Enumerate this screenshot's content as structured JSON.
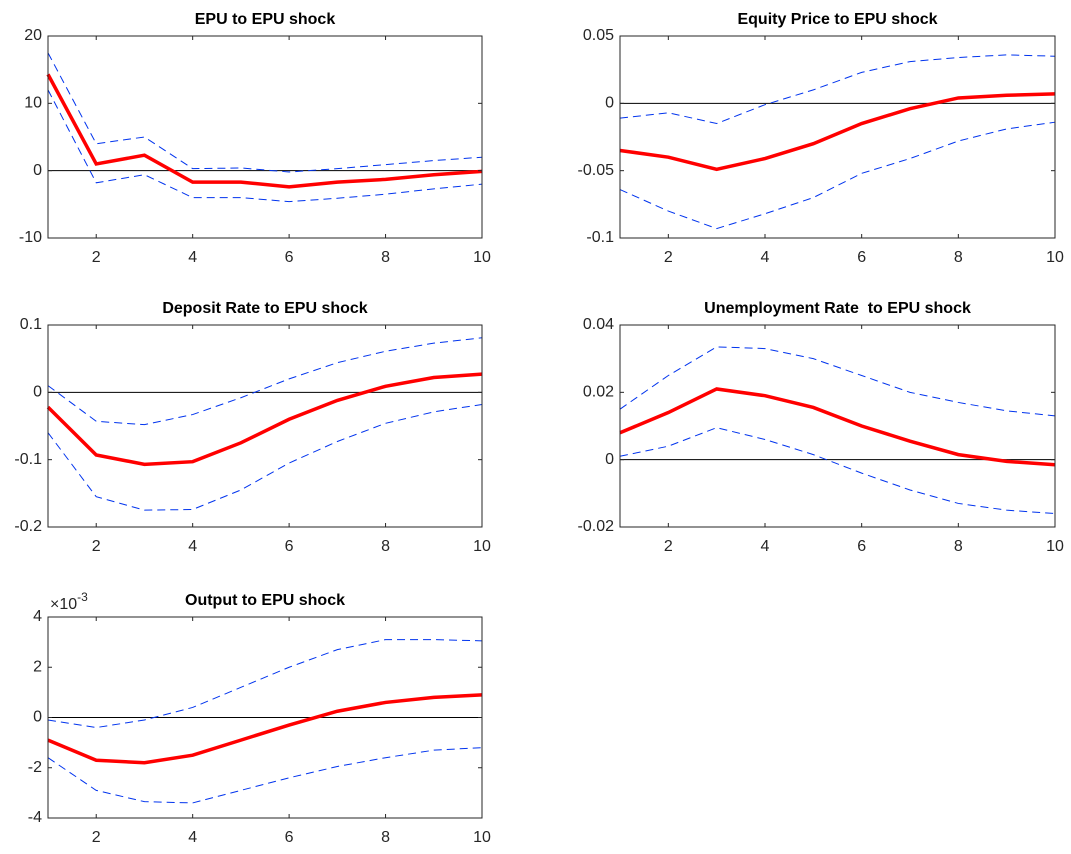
{
  "chart_data": [
    {
      "type": "line",
      "title": "EPU to EPU shock",
      "x": [
        1,
        2,
        3,
        4,
        5,
        6,
        7,
        8,
        9,
        10
      ],
      "xlim": [
        1,
        10
      ],
      "xticks": [
        2,
        4,
        6,
        8,
        10
      ],
      "ylim": [
        -10,
        20
      ],
      "yticks": [
        -10,
        0,
        10,
        20
      ],
      "zero_line": true,
      "box": true,
      "series": [
        {
          "color": "#ff0000",
          "style": "solid",
          "values": [
            14.3,
            1.0,
            2.3,
            -1.7,
            -1.7,
            -2.4,
            -1.7,
            -1.3,
            -0.6,
            -0.1
          ]
        },
        {
          "color": "#0033ee",
          "style": "dashed",
          "values": [
            17.5,
            4.0,
            5.0,
            0.3,
            0.4,
            -0.2,
            0.3,
            0.9,
            1.5,
            2.0
          ]
        },
        {
          "color": "#0033ee",
          "style": "dashed",
          "values": [
            12.0,
            -1.8,
            -0.6,
            -4.0,
            -4.0,
            -4.6,
            -4.1,
            -3.5,
            -2.7,
            -2.0
          ]
        }
      ]
    },
    {
      "type": "line",
      "title": "Equity Price to EPU shock",
      "x": [
        1,
        2,
        3,
        4,
        5,
        6,
        7,
        8,
        9,
        10
      ],
      "xlim": [
        1,
        10
      ],
      "xticks": [
        2,
        4,
        6,
        8,
        10
      ],
      "ylim": [
        -0.1,
        0.05
      ],
      "yticks": [
        -0.1,
        -0.05,
        0,
        0.05
      ],
      "zero_line": true,
      "box": true,
      "series": [
        {
          "color": "#ff0000",
          "style": "solid",
          "values": [
            -0.035,
            -0.04,
            -0.049,
            -0.041,
            -0.03,
            -0.015,
            -0.004,
            0.004,
            0.006,
            0.007
          ]
        },
        {
          "color": "#0033ee",
          "style": "dashed",
          "values": [
            -0.011,
            -0.007,
            -0.015,
            -0.001,
            0.01,
            0.023,
            0.031,
            0.034,
            0.036,
            0.035
          ]
        },
        {
          "color": "#0033ee",
          "style": "dashed",
          "values": [
            -0.064,
            -0.08,
            -0.093,
            -0.082,
            -0.07,
            -0.052,
            -0.041,
            -0.028,
            -0.019,
            -0.014
          ]
        }
      ]
    },
    {
      "type": "line",
      "title": "Deposit Rate to EPU shock",
      "x": [
        1,
        2,
        3,
        4,
        5,
        6,
        7,
        8,
        9,
        10
      ],
      "xlim": [
        1,
        10
      ],
      "xticks": [
        2,
        4,
        6,
        8,
        10
      ],
      "ylim": [
        -0.2,
        0.1
      ],
      "yticks": [
        -0.2,
        -0.1,
        0,
        0.1
      ],
      "zero_line": true,
      "box": true,
      "series": [
        {
          "color": "#ff0000",
          "style": "solid",
          "values": [
            -0.022,
            -0.093,
            -0.107,
            -0.103,
            -0.075,
            -0.04,
            -0.012,
            0.009,
            0.022,
            0.027
          ]
        },
        {
          "color": "#0033ee",
          "style": "dashed",
          "values": [
            0.01,
            -0.043,
            -0.048,
            -0.033,
            -0.008,
            0.02,
            0.044,
            0.061,
            0.073,
            0.081
          ]
        },
        {
          "color": "#0033ee",
          "style": "dashed",
          "values": [
            -0.06,
            -0.155,
            -0.175,
            -0.174,
            -0.145,
            -0.105,
            -0.073,
            -0.046,
            -0.029,
            -0.018
          ]
        }
      ]
    },
    {
      "type": "line",
      "title": "Unemployment Rate  to EPU shock",
      "x": [
        1,
        2,
        3,
        4,
        5,
        6,
        7,
        8,
        9,
        10
      ],
      "xlim": [
        1,
        10
      ],
      "xticks": [
        2,
        4,
        6,
        8,
        10
      ],
      "ylim": [
        -0.02,
        0.04
      ],
      "yticks": [
        -0.02,
        0,
        0.02,
        0.04
      ],
      "zero_line": true,
      "box": true,
      "series": [
        {
          "color": "#ff0000",
          "style": "solid",
          "values": [
            0.008,
            0.014,
            0.021,
            0.019,
            0.0155,
            0.01,
            0.0055,
            0.0015,
            -0.0005,
            -0.0015
          ]
        },
        {
          "color": "#0033ee",
          "style": "dashed",
          "values": [
            0.015,
            0.025,
            0.0335,
            0.033,
            0.03,
            0.025,
            0.02,
            0.017,
            0.0145,
            0.013
          ]
        },
        {
          "color": "#0033ee",
          "style": "dashed",
          "values": [
            0.001,
            0.004,
            0.0095,
            0.006,
            0.0015,
            -0.004,
            -0.009,
            -0.013,
            -0.015,
            -0.016
          ]
        }
      ]
    },
    {
      "type": "line",
      "title": "Output to EPU shock",
      "y_scale_label": {
        "base": "×10",
        "exponent": "-3"
      },
      "x": [
        1,
        2,
        3,
        4,
        5,
        6,
        7,
        8,
        9,
        10
      ],
      "xlim": [
        1,
        10
      ],
      "xticks": [
        2,
        4,
        6,
        8,
        10
      ],
      "ylim": [
        -4,
        4
      ],
      "yticks": [
        -4,
        -2,
        0,
        2,
        4
      ],
      "zero_line": true,
      "box": true,
      "series": [
        {
          "color": "#ff0000",
          "style": "solid",
          "values": [
            -0.9,
            -1.7,
            -1.8,
            -1.5,
            -0.9,
            -0.3,
            0.25,
            0.6,
            0.8,
            0.9
          ]
        },
        {
          "color": "#0033ee",
          "style": "dashed",
          "values": [
            -0.1,
            -0.4,
            -0.1,
            0.4,
            1.2,
            2.0,
            2.7,
            3.1,
            3.1,
            3.05
          ]
        },
        {
          "color": "#0033ee",
          "style": "dashed",
          "values": [
            -1.6,
            -2.9,
            -3.35,
            -3.4,
            -2.9,
            -2.4,
            -1.95,
            -1.6,
            -1.3,
            -1.2
          ]
        }
      ]
    }
  ]
}
